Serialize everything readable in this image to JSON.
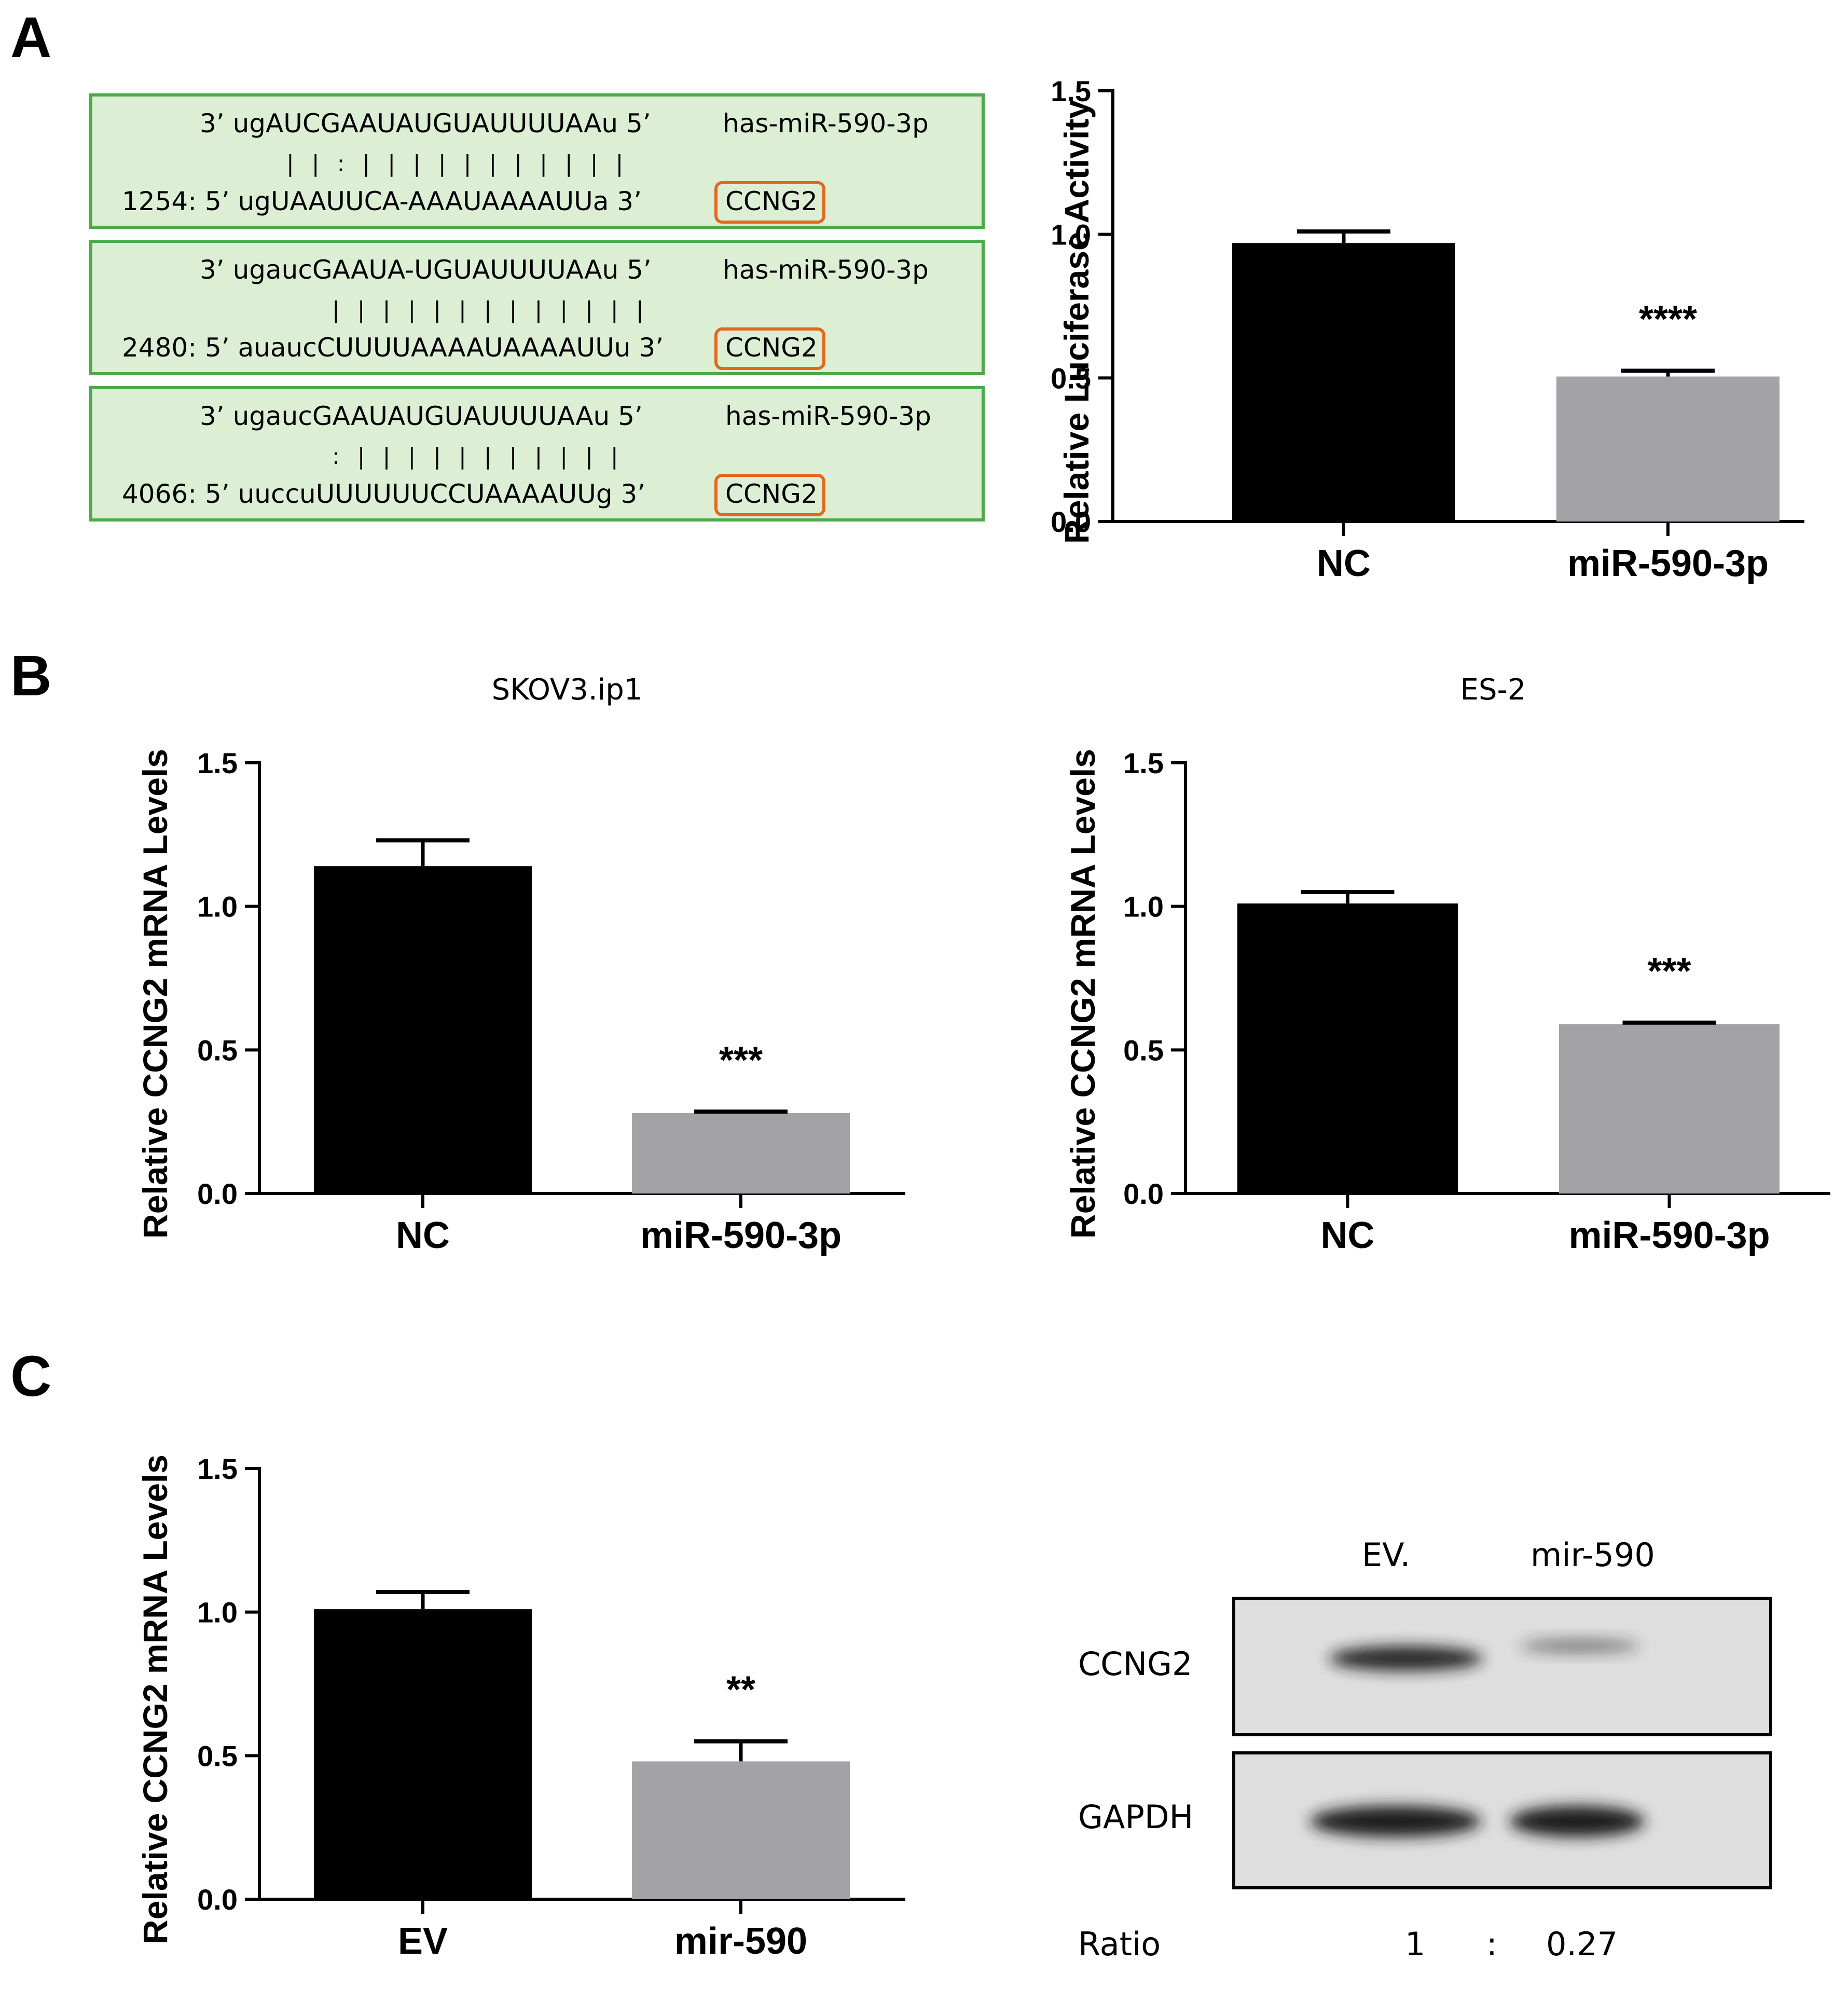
{
  "panels": {
    "a": "A",
    "b": "B",
    "c": "C"
  },
  "alignments": [
    {
      "mirna_seq": "3’  ugAUCGAAUAUGUAUUUUAAu  5’",
      "mirna_name": "has-miR-590-3p",
      "pairing": "| |    : |     |      |     |  |  |  |  |  |  |  |",
      "target_seq": "1254: 5’  ugUAAUUCA-AAAUAAAAUUa  3’",
      "target_name": "CCNG2"
    },
    {
      "mirna_seq": "3’  ugaucGAAUA-UGUAUUUUAAu 5’",
      "mirna_name": "has-miR-590-3p",
      "pairing": "|  |  |     |    |     |  |  |  |  |  |  |  |",
      "target_seq": "2480: 5’  auaucCUUUUAAAAUAAAAUUu 3’",
      "target_name": "CCNG2"
    },
    {
      "mirna_seq": "3’  ugaucGAAUAUGUAUUUUAAu    5’",
      "mirna_name": "has-miR-590-3p",
      "pairing": ": |  |     |     |     |  |  |  |  |  |  |",
      "target_seq": "4066: 5’  uuccuUUUUUUCCUAAAAUUg   3’",
      "target_name": "CCNG2"
    }
  ],
  "chart_data": [
    {
      "id": "luciferase",
      "type": "bar",
      "title": "",
      "categories": [
        "NC",
        "miR-590-3p"
      ],
      "values": [
        0.97,
        0.505
      ],
      "errors": [
        0.04,
        0.02
      ],
      "colors": [
        "#000000",
        "#a3a2a6"
      ],
      "significance": [
        "",
        "****"
      ],
      "ylabel": "Relative Luciferase Activity",
      "ylim": [
        0,
        1.5
      ],
      "yticks": [
        "0.0",
        "0.5",
        "1.0",
        "1.5"
      ]
    },
    {
      "id": "skov3",
      "type": "bar",
      "title": "SKOV3.ip1",
      "categories": [
        "NC",
        "miR-590-3p"
      ],
      "values": [
        1.14,
        0.28
      ],
      "errors": [
        0.09,
        0.005
      ],
      "colors": [
        "#000000",
        "#a3a2a6"
      ],
      "significance": [
        "",
        "***"
      ],
      "ylabel": "Relative CCNG2 mRNA Levels",
      "ylim": [
        0,
        1.5
      ],
      "yticks": [
        "0.0",
        "0.5",
        "1.0",
        "1.5"
      ]
    },
    {
      "id": "es2",
      "type": "bar",
      "title": "ES-2",
      "categories": [
        "NC",
        "miR-590-3p"
      ],
      "values": [
        1.01,
        0.59
      ],
      "errors": [
        0.04,
        0.005
      ],
      "colors": [
        "#000000",
        "#a3a2a6"
      ],
      "significance": [
        "",
        "***"
      ],
      "ylabel": "Relative CCNG2 mRNA Levels",
      "ylim": [
        0,
        1.5
      ],
      "yticks": [
        "0.0",
        "0.5",
        "1.0",
        "1.5"
      ]
    },
    {
      "id": "ev_mir590",
      "type": "bar",
      "title": "",
      "categories": [
        "EV",
        "mir-590"
      ],
      "values": [
        1.01,
        0.48
      ],
      "errors": [
        0.06,
        0.07
      ],
      "colors": [
        "#000000",
        "#a3a2a6"
      ],
      "significance": [
        "",
        "**"
      ],
      "ylabel": "Relative CCNG2 mRNA Levels",
      "ylim": [
        0,
        1.5
      ],
      "yticks": [
        "0.0",
        "0.5",
        "1.0",
        "1.5"
      ]
    }
  ],
  "western_blot": {
    "lanes": [
      "EV.",
      "mir-590"
    ],
    "rows": [
      "CCNG2",
      "GAPDH"
    ],
    "ratio_label": "Ratio",
    "ratio_left": "1",
    "ratio_sep": ":",
    "ratio_right": "0.27",
    "band_intensity": {
      "CCNG2": [
        1,
        0.27
      ],
      "GAPDH": [
        1,
        1
      ]
    }
  }
}
